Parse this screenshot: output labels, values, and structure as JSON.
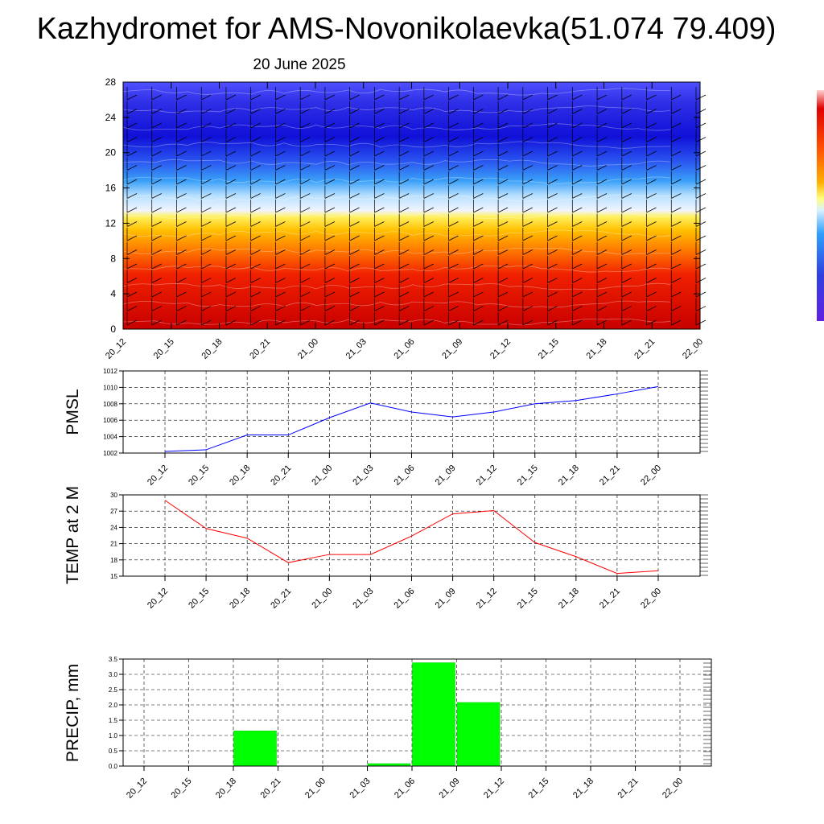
{
  "title": "Kazhydromet for AMS-Novonikolaevka(51.074 79.409)",
  "subtitle": "20 June 2025",
  "colors": {
    "pmsl_line": "#0000ff",
    "temp_line": "#ff0000",
    "precip_bar": "#00ff00",
    "cross_section_top": "#2020e0",
    "cross_section_bottom": "#d00000"
  },
  "chart_data": [
    {
      "type": "heatmap",
      "id": "cross-section",
      "x": [
        "20_12",
        "20_15",
        "20_18",
        "20_21",
        "21_00",
        "21_03",
        "21_06",
        "21_09",
        "21_12",
        "21_15",
        "21_18",
        "21_21",
        "22_00"
      ],
      "yticks": [
        "0",
        "4",
        "8",
        "12",
        "16",
        "20",
        "24",
        "28"
      ],
      "ylim": [
        0,
        28
      ],
      "colorbar": "blue (top) to red (bottom), white near 14"
    },
    {
      "type": "line",
      "id": "pmsl",
      "ylabel": "PMSL",
      "x": [
        "20_12",
        "20_15",
        "20_18",
        "20_21",
        "21_00",
        "21_03",
        "21_06",
        "21_09",
        "21_12",
        "21_15",
        "21_18",
        "21_21",
        "22_00"
      ],
      "values": [
        1002.2,
        1002.4,
        1004.2,
        1004.2,
        1006.3,
        1008.1,
        1007.0,
        1006.4,
        1007.0,
        1008.0,
        1008.4,
        1009.2,
        1010.1
      ],
      "yticks": [
        "1002",
        "1004",
        "1006",
        "1008",
        "1010",
        "1012"
      ],
      "ylim": [
        1002,
        1012
      ],
      "grid": true
    },
    {
      "type": "line",
      "id": "temp",
      "ylabel": "TEMP at 2 M",
      "x": [
        "20_12",
        "20_15",
        "20_18",
        "20_21",
        "21_00",
        "21_03",
        "21_06",
        "21_09",
        "21_12",
        "21_15",
        "21_18",
        "21_21",
        "22_00"
      ],
      "values": [
        29.0,
        23.8,
        22.0,
        17.5,
        19.0,
        19.0,
        22.4,
        26.5,
        27.1,
        21.2,
        18.6,
        15.5,
        16.0
      ],
      "yticks": [
        "15",
        "18",
        "21",
        "24",
        "27",
        "30"
      ],
      "ylim": [
        15,
        30
      ],
      "grid": true
    },
    {
      "type": "bar",
      "id": "precip",
      "ylabel": "PRECIP, mm",
      "categories": [
        "20_12",
        "20_15",
        "20_18",
        "20_21",
        "21_00",
        "21_03",
        "21_06",
        "21_09",
        "21_12",
        "21_15",
        "21_18",
        "21_21",
        "22_00"
      ],
      "values": [
        0,
        0,
        1.15,
        0,
        0,
        0.08,
        3.38,
        2.08,
        0,
        0,
        0,
        0,
        0
      ],
      "yticks": [
        "0.0",
        "0.5",
        "1.0",
        "1.5",
        "2.0",
        "2.5",
        "3.0",
        "3.5"
      ],
      "ylim": [
        0,
        3.5
      ],
      "grid": true
    }
  ]
}
